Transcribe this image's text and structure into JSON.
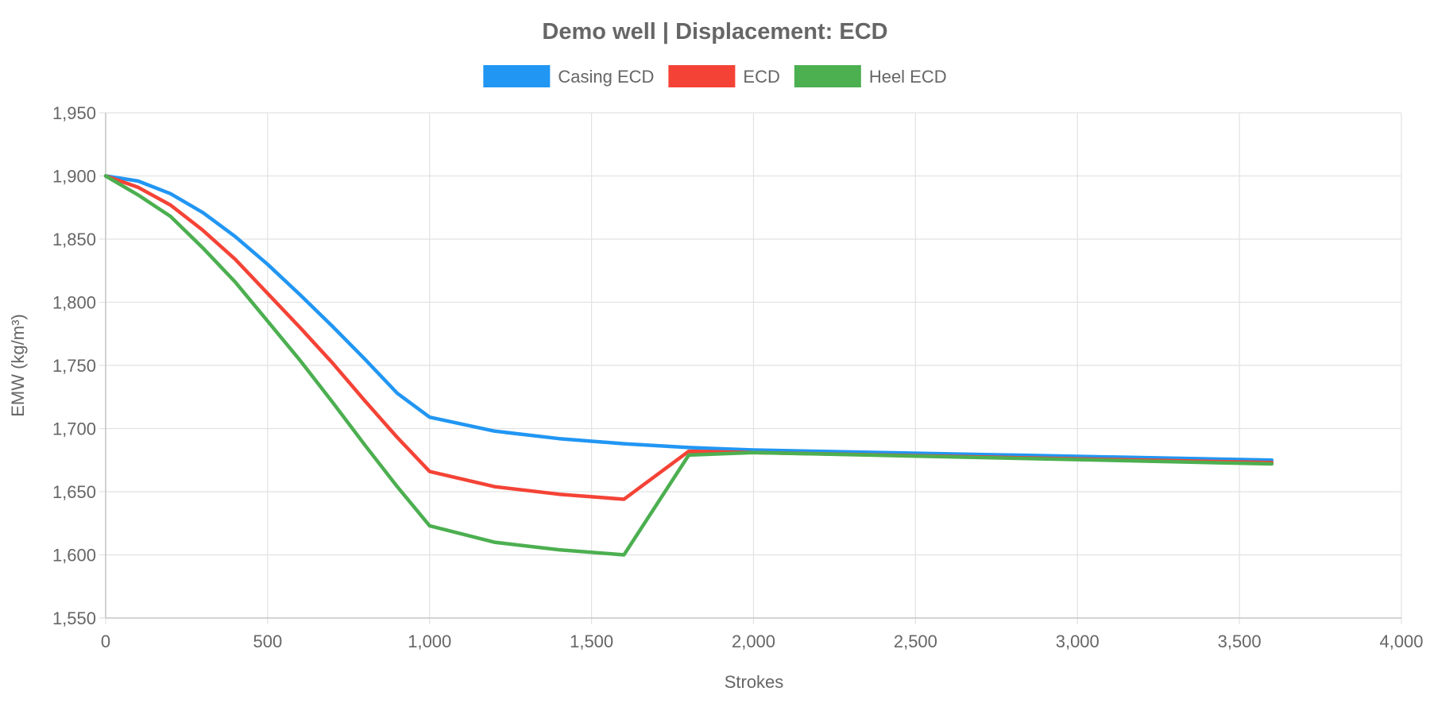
{
  "chart_data": {
    "type": "line",
    "title": "Demo well | Displacement: ECD",
    "xlabel": "Strokes",
    "ylabel": "EMW (kg/m³)",
    "xlim": [
      0,
      4000
    ],
    "ylim": [
      1550,
      1950
    ],
    "x_ticks": [
      "0",
      "500",
      "1,000",
      "1,500",
      "2,000",
      "2,500",
      "3,000",
      "3,500",
      "4,000"
    ],
    "y_ticks": [
      "1,550",
      "1,600",
      "1,650",
      "1,700",
      "1,750",
      "1,800",
      "1,850",
      "1,900",
      "1,950"
    ],
    "grid": true,
    "legend_position": "top",
    "series": [
      {
        "name": "Casing ECD",
        "color": "#2196f3",
        "x": [
          0,
          100,
          200,
          300,
          400,
          500,
          600,
          700,
          800,
          900,
          1000,
          1200,
          1400,
          1600,
          1800,
          2000,
          3600
        ],
        "y": [
          1900,
          1896,
          1886,
          1871,
          1852,
          1830,
          1806,
          1781,
          1755,
          1728,
          1709,
          1698,
          1692,
          1688,
          1685,
          1683,
          1675
        ]
      },
      {
        "name": "ECD",
        "color": "#f44336",
        "x": [
          0,
          100,
          200,
          300,
          400,
          500,
          600,
          700,
          800,
          900,
          1000,
          1200,
          1400,
          1600,
          1800,
          2000,
          3600
        ],
        "y": [
          1900,
          1891,
          1877,
          1857,
          1834,
          1807,
          1780,
          1752,
          1722,
          1693,
          1666,
          1654,
          1648,
          1644,
          1682,
          1681,
          1673
        ]
      },
      {
        "name": "Heel ECD",
        "color": "#4caf50",
        "x": [
          0,
          100,
          200,
          300,
          400,
          500,
          600,
          700,
          800,
          900,
          1000,
          1200,
          1400,
          1600,
          1800,
          2000,
          3600
        ],
        "y": [
          1900,
          1885,
          1868,
          1843,
          1816,
          1785,
          1754,
          1721,
          1687,
          1654,
          1623,
          1610,
          1604,
          1600,
          1679,
          1681,
          1672
        ]
      }
    ]
  }
}
